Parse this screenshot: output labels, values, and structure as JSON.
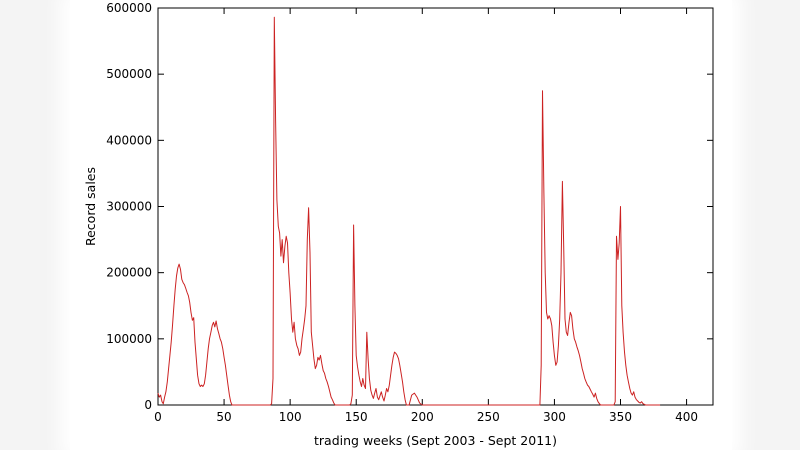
{
  "chart_data": {
    "type": "line",
    "title": "",
    "xlabel": "trading weeks (Sept 2003 - Sept 2011)",
    "ylabel": "Record sales",
    "xlim": [
      0,
      420
    ],
    "ylim": [
      0,
      600000
    ],
    "xticks": [
      0,
      50,
      100,
      150,
      200,
      250,
      300,
      350,
      400
    ],
    "yticks": [
      0,
      100000,
      200000,
      300000,
      400000,
      500000,
      600000
    ],
    "grid": false,
    "legend": "none",
    "series": [
      {
        "color": "#cc2222",
        "points": [
          [
            0,
            18000
          ],
          [
            1,
            12000
          ],
          [
            2,
            15000
          ],
          [
            3,
            5000
          ],
          [
            4,
            2000
          ],
          [
            5,
            12000
          ],
          [
            6,
            20000
          ],
          [
            7,
            35000
          ],
          [
            8,
            55000
          ],
          [
            9,
            75000
          ],
          [
            10,
            95000
          ],
          [
            11,
            120000
          ],
          [
            12,
            150000
          ],
          [
            13,
            175000
          ],
          [
            14,
            195000
          ],
          [
            15,
            207000
          ],
          [
            16,
            213000
          ],
          [
            17,
            205000
          ],
          [
            18,
            190000
          ],
          [
            19,
            185000
          ],
          [
            20,
            182000
          ],
          [
            21,
            176000
          ],
          [
            22,
            170000
          ],
          [
            23,
            165000
          ],
          [
            24,
            155000
          ],
          [
            25,
            140000
          ],
          [
            26,
            128000
          ],
          [
            27,
            132000
          ],
          [
            28,
            95000
          ],
          [
            29,
            70000
          ],
          [
            30,
            45000
          ],
          [
            31,
            32000
          ],
          [
            32,
            28000
          ],
          [
            33,
            30000
          ],
          [
            34,
            28000
          ],
          [
            35,
            32000
          ],
          [
            36,
            45000
          ],
          [
            37,
            65000
          ],
          [
            38,
            85000
          ],
          [
            39,
            100000
          ],
          [
            40,
            110000
          ],
          [
            41,
            120000
          ],
          [
            42,
            125000
          ],
          [
            43,
            118000
          ],
          [
            44,
            127000
          ],
          [
            45,
            115000
          ],
          [
            46,
            108000
          ],
          [
            47,
            100000
          ],
          [
            48,
            95000
          ],
          [
            49,
            85000
          ],
          [
            50,
            72000
          ],
          [
            51,
            60000
          ],
          [
            52,
            45000
          ],
          [
            53,
            30000
          ],
          [
            54,
            15000
          ],
          [
            55,
            5000
          ],
          [
            56,
            0
          ],
          [
            85,
            0
          ],
          [
            86,
            2000
          ],
          [
            87,
            40000
          ],
          [
            88,
            586000
          ],
          [
            89,
            430000
          ],
          [
            90,
            310000
          ],
          [
            91,
            270000
          ],
          [
            92,
            260000
          ],
          [
            93,
            225000
          ],
          [
            94,
            250000
          ],
          [
            95,
            215000
          ],
          [
            96,
            240000
          ],
          [
            97,
            255000
          ],
          [
            98,
            245000
          ],
          [
            99,
            200000
          ],
          [
            100,
            170000
          ],
          [
            101,
            130000
          ],
          [
            102,
            110000
          ],
          [
            103,
            125000
          ],
          [
            104,
            100000
          ],
          [
            105,
            90000
          ],
          [
            106,
            85000
          ],
          [
            107,
            75000
          ],
          [
            108,
            80000
          ],
          [
            109,
            100000
          ],
          [
            110,
            115000
          ],
          [
            111,
            130000
          ],
          [
            112,
            150000
          ],
          [
            113,
            250000
          ],
          [
            114,
            298000
          ],
          [
            115,
            230000
          ],
          [
            116,
            110000
          ],
          [
            117,
            90000
          ],
          [
            118,
            70000
          ],
          [
            119,
            55000
          ],
          [
            120,
            60000
          ],
          [
            121,
            72000
          ],
          [
            122,
            68000
          ],
          [
            123,
            75000
          ],
          [
            124,
            62000
          ],
          [
            125,
            52000
          ],
          [
            126,
            48000
          ],
          [
            127,
            40000
          ],
          [
            128,
            35000
          ],
          [
            129,
            28000
          ],
          [
            130,
            20000
          ],
          [
            131,
            12000
          ],
          [
            132,
            8000
          ],
          [
            133,
            3000
          ],
          [
            134,
            0
          ],
          [
            145,
            0
          ],
          [
            146,
            2000
          ],
          [
            147,
            15000
          ],
          [
            148,
            272000
          ],
          [
            149,
            150000
          ],
          [
            150,
            75000
          ],
          [
            151,
            58000
          ],
          [
            152,
            45000
          ],
          [
            153,
            35000
          ],
          [
            154,
            28000
          ],
          [
            155,
            40000
          ],
          [
            156,
            30000
          ],
          [
            157,
            25000
          ],
          [
            158,
            110000
          ],
          [
            159,
            70000
          ],
          [
            160,
            40000
          ],
          [
            161,
            22000
          ],
          [
            162,
            15000
          ],
          [
            163,
            10000
          ],
          [
            164,
            18000
          ],
          [
            165,
            25000
          ],
          [
            166,
            12000
          ],
          [
            167,
            8000
          ],
          [
            168,
            14000
          ],
          [
            169,
            20000
          ],
          [
            170,
            12000
          ],
          [
            171,
            6000
          ],
          [
            172,
            15000
          ],
          [
            173,
            25000
          ],
          [
            174,
            20000
          ],
          [
            175,
            30000
          ],
          [
            176,
            45000
          ],
          [
            177,
            60000
          ],
          [
            178,
            72000
          ],
          [
            179,
            80000
          ],
          [
            180,
            78000
          ],
          [
            181,
            75000
          ],
          [
            182,
            70000
          ],
          [
            183,
            60000
          ],
          [
            184,
            48000
          ],
          [
            185,
            35000
          ],
          [
            186,
            20000
          ],
          [
            187,
            8000
          ],
          [
            188,
            0
          ],
          [
            190,
            0
          ],
          [
            192,
            15000
          ],
          [
            194,
            18000
          ],
          [
            196,
            12000
          ],
          [
            198,
            3000
          ],
          [
            200,
            0
          ],
          [
            288,
            0
          ],
          [
            289,
            0
          ],
          [
            290,
            60000
          ],
          [
            291,
            475000
          ],
          [
            292,
            320000
          ],
          [
            293,
            200000
          ],
          [
            294,
            140000
          ],
          [
            295,
            130000
          ],
          [
            296,
            135000
          ],
          [
            297,
            130000
          ],
          [
            298,
            120000
          ],
          [
            299,
            95000
          ],
          [
            300,
            75000
          ],
          [
            301,
            60000
          ],
          [
            302,
            65000
          ],
          [
            303,
            90000
          ],
          [
            304,
            130000
          ],
          [
            305,
            200000
          ],
          [
            306,
            338000
          ],
          [
            307,
            240000
          ],
          [
            308,
            130000
          ],
          [
            309,
            110000
          ],
          [
            310,
            105000
          ],
          [
            311,
            125000
          ],
          [
            312,
            140000
          ],
          [
            313,
            135000
          ],
          [
            314,
            115000
          ],
          [
            315,
            100000
          ],
          [
            316,
            95000
          ],
          [
            317,
            88000
          ],
          [
            318,
            82000
          ],
          [
            319,
            75000
          ],
          [
            320,
            65000
          ],
          [
            321,
            55000
          ],
          [
            322,
            48000
          ],
          [
            323,
            40000
          ],
          [
            324,
            35000
          ],
          [
            325,
            30000
          ],
          [
            326,
            28000
          ],
          [
            327,
            24000
          ],
          [
            328,
            20000
          ],
          [
            329,
            16000
          ],
          [
            330,
            12000
          ],
          [
            331,
            18000
          ],
          [
            332,
            10000
          ],
          [
            333,
            5000
          ],
          [
            334,
            2000
          ],
          [
            335,
            0
          ],
          [
            345,
            0
          ],
          [
            346,
            5000
          ],
          [
            347,
            255000
          ],
          [
            348,
            220000
          ],
          [
            349,
            245000
          ],
          [
            350,
            300000
          ],
          [
            351,
            150000
          ],
          [
            352,
            110000
          ],
          [
            353,
            80000
          ],
          [
            354,
            60000
          ],
          [
            355,
            45000
          ],
          [
            356,
            35000
          ],
          [
            357,
            25000
          ],
          [
            358,
            18000
          ],
          [
            359,
            15000
          ],
          [
            360,
            20000
          ],
          [
            361,
            12000
          ],
          [
            362,
            8000
          ],
          [
            363,
            6000
          ],
          [
            364,
            4000
          ],
          [
            365,
            3000
          ],
          [
            366,
            5000
          ],
          [
            367,
            2000
          ],
          [
            368,
            1000
          ],
          [
            369,
            0
          ],
          [
            380,
            0
          ]
        ]
      }
    ]
  }
}
